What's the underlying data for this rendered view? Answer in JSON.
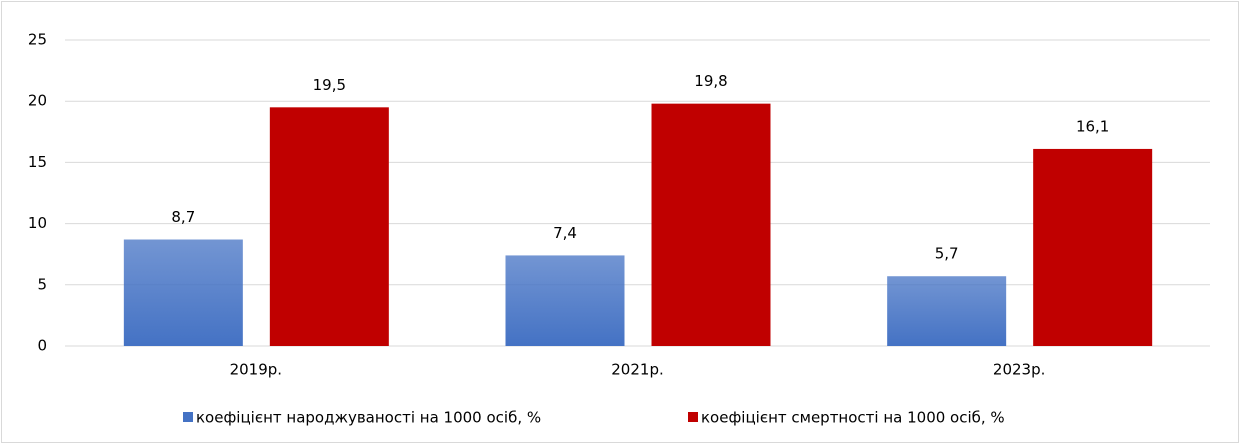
{
  "chart_data": {
    "type": "bar",
    "categories": [
      "2019р.",
      "2021р.",
      "2023р."
    ],
    "series": [
      {
        "name": "коефіцієнт народжуваності на 1000 осіб, %",
        "color": "#4472c4",
        "gradient": true,
        "values": [
          8.7,
          7.4,
          5.7
        ],
        "value_labels": [
          "8,7",
          "7,4",
          "5,7"
        ]
      },
      {
        "name": "коефіцієнт смертності на 1000 осіб, %",
        "color": "#c00000",
        "values": [
          19.5,
          19.8,
          16.1
        ],
        "value_labels": [
          "19,5",
          "19,8",
          "16,1"
        ]
      }
    ],
    "ylim": [
      0,
      25
    ],
    "yticks": [
      0,
      5,
      10,
      15,
      20,
      25
    ],
    "grid": true,
    "legend": "bottom"
  }
}
